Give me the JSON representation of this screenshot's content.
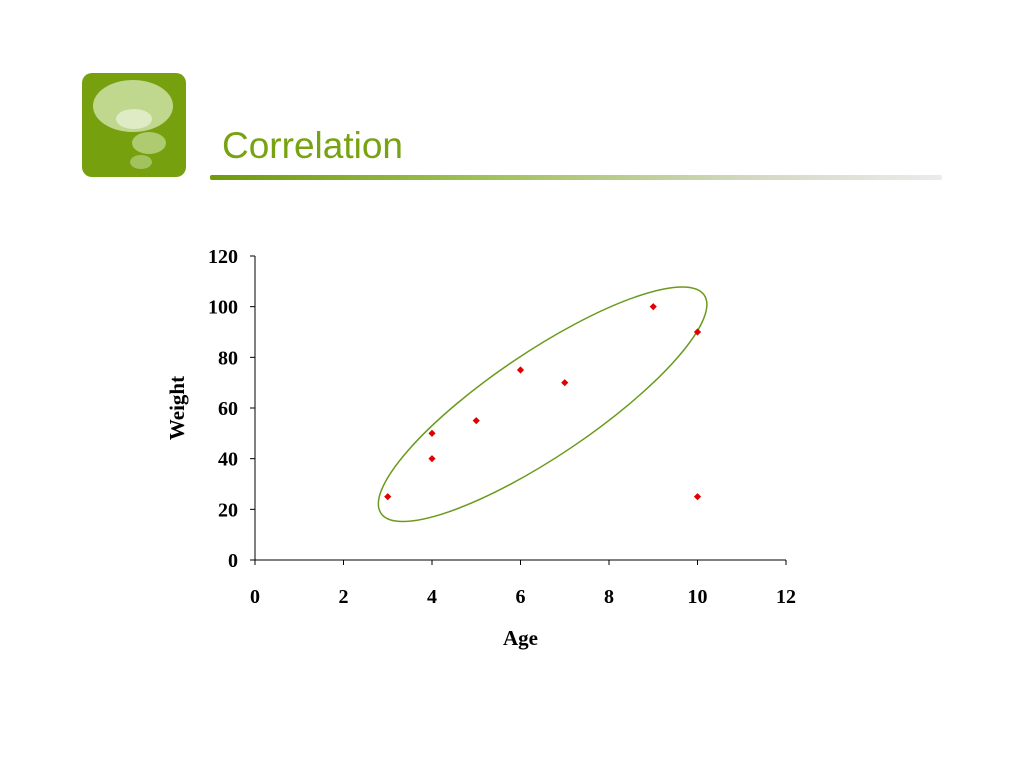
{
  "slide": {
    "title": "Correlation",
    "logo_icon": "thought-bubble-icon",
    "accent_color": "#76a00e"
  },
  "chart_data": {
    "type": "scatter",
    "title": "",
    "xlabel": "Age",
    "ylabel": "Weight",
    "xlim": [
      0,
      12
    ],
    "ylim": [
      0,
      120
    ],
    "x_ticks": [
      0,
      2,
      4,
      6,
      8,
      10,
      12
    ],
    "y_ticks": [
      0,
      20,
      40,
      60,
      80,
      100,
      120
    ],
    "grid": false,
    "legend": "none",
    "series": [
      {
        "marker": "diamond",
        "color": "#e00000",
        "points": [
          {
            "x": 3,
            "y": 25
          },
          {
            "x": 4,
            "y": 50
          },
          {
            "x": 4,
            "y": 40
          },
          {
            "x": 5,
            "y": 55
          },
          {
            "x": 6,
            "y": 75
          },
          {
            "x": 7,
            "y": 70
          },
          {
            "x": 9,
            "y": 100
          },
          {
            "x": 10,
            "y": 90
          },
          {
            "x": 10,
            "y": 25
          }
        ]
      }
    ],
    "annotations": [
      {
        "type": "ellipse",
        "color": "#6a9a1c",
        "encloses": "points 1-8 (excluding outlier at x=10, y=25)"
      }
    ]
  }
}
